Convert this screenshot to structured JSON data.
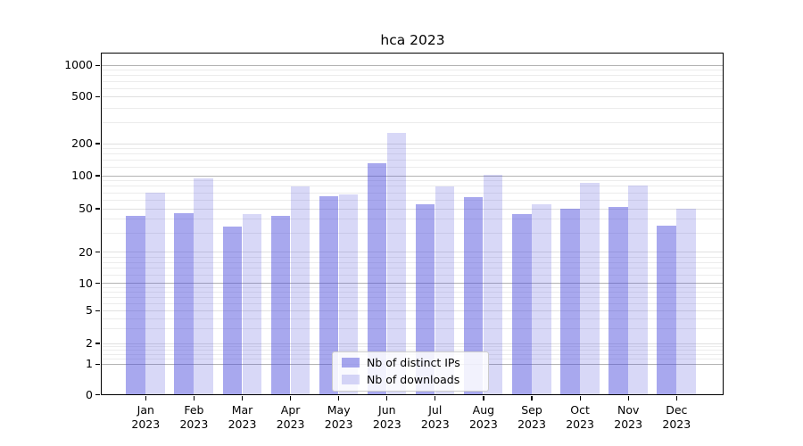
{
  "chart_data": {
    "type": "bar",
    "title": "hca 2023",
    "categories": [
      "Jan",
      "Feb",
      "Mar",
      "Apr",
      "May",
      "Jun",
      "Jul",
      "Aug",
      "Sep",
      "Oct",
      "Nov",
      "Dec"
    ],
    "category_year": "2023",
    "series": [
      {
        "name": "Nb of distinct IPs",
        "values": [
          43,
          45,
          34,
          43,
          64,
          129,
          54,
          63,
          44,
          50,
          51,
          35
        ],
        "color": "rgba(70,70,219,0.47)"
      },
      {
        "name": "Nb of downloads",
        "values": [
          69,
          94,
          44,
          79,
          67,
          245,
          79,
          101,
          54,
          85,
          80,
          50
        ],
        "color": "rgba(70,70,219,0.21)"
      }
    ],
    "yticks": [
      0,
      1,
      2,
      5,
      10,
      20,
      50,
      100,
      200,
      500,
      1000
    ],
    "ylim": [
      0,
      1100
    ],
    "yscale": "log-like (log decades above 10, compressed 0–1–2–5–10 region, true 0 baseline)",
    "grid": true,
    "legend_position": "lower center",
    "colors": {
      "bar_distinct_ips": "rgba(70,70,219,0.47)",
      "bar_downloads": "rgba(70,70,219,0.21)",
      "grid_major": "#b3b3b3",
      "grid_mid": "#e0e0e0",
      "grid_minor": "#ececec",
      "spine": "#000000",
      "background": "#ffffff"
    }
  }
}
